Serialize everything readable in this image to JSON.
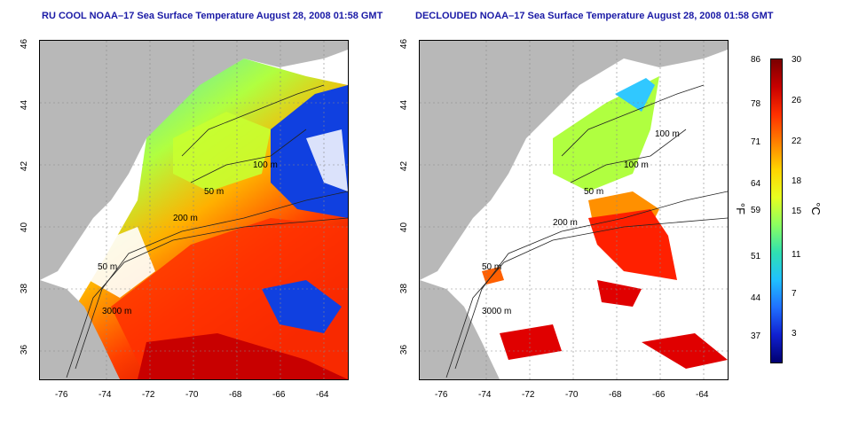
{
  "titles": {
    "left": "RU COOL NOAA–17 Sea Surface Temperature August 28, 2008 01:58 GMT",
    "right": "DECLOUDED NOAA–17 Sea Surface Temperature August 28, 2008 01:58 GMT"
  },
  "axes": {
    "x_ticks": [
      "-76",
      "-74",
      "-72",
      "-70",
      "-68",
      "-66",
      "-64"
    ],
    "y_ticks": [
      "46",
      "44",
      "42",
      "40",
      "38",
      "36"
    ]
  },
  "contours": {
    "left": [
      "100 m",
      "50 m",
      "200 m",
      "50 m",
      "3000 m"
    ],
    "right": [
      "100 m",
      "100 m",
      "50 m",
      "200 m",
      "50 m",
      "3000 m"
    ]
  },
  "colorbar": {
    "fahrenheit_ticks": [
      "86",
      "78",
      "71",
      "64",
      "59",
      "51",
      "44",
      "37"
    ],
    "celsius_ticks": [
      "30",
      "26",
      "22",
      "18",
      "15",
      "11",
      "7",
      "3"
    ],
    "unit_f": "°F",
    "unit_c": "°C",
    "colors": [
      "#7a0000",
      "#c80000",
      "#ff3000",
      "#ff8000",
      "#ffd400",
      "#e8ff20",
      "#8cff60",
      "#30e0b0",
      "#20c0ff",
      "#2070ff",
      "#1020d0",
      "#000070"
    ]
  },
  "colors": {
    "land": "#b8b8b8",
    "cloud": "#ffffff",
    "title": "#1a1aa6"
  }
}
